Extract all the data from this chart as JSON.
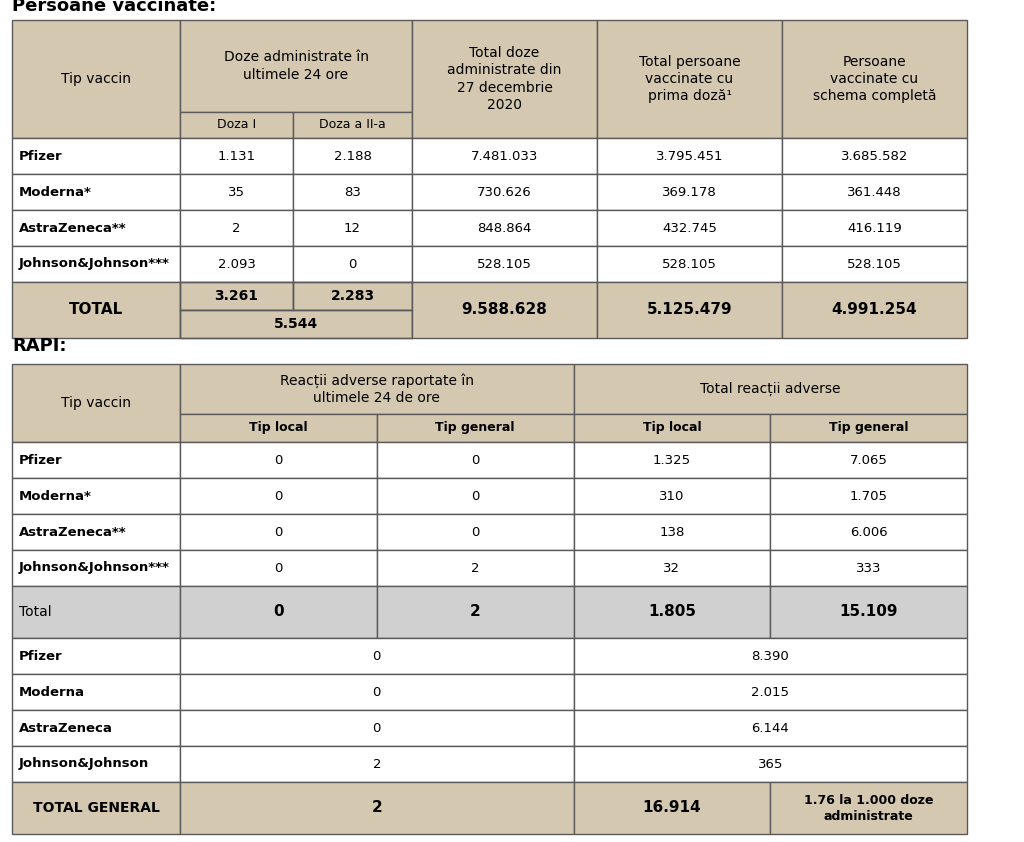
{
  "title1": "Persoane vaccinate:",
  "title2": "RAPI:",
  "bg_color": "#ffffff",
  "header_bg": "#d4c9b0",
  "total_bg": "#d4c9b0",
  "rapi_total_bg": "#d0d0d0",
  "border_color": "#5a5a5a",
  "lw": 1.0,
  "t1": {
    "rows": [
      [
        "Pfizer",
        "1.131",
        "2.188",
        "7.481.033",
        "3.795.451",
        "3.685.582"
      ],
      [
        "Moderna*",
        "35",
        "83",
        "730.626",
        "369.178",
        "361.448"
      ],
      [
        "AstraZeneca**",
        "2",
        "12",
        "848.864",
        "432.745",
        "416.119"
      ],
      [
        "Johnson&Johnson***",
        "2.093",
        "0",
        "528.105",
        "528.105",
        "528.105"
      ]
    ],
    "total": [
      "TOTAL",
      "3.261",
      "2.283",
      "5.544",
      "9.588.628",
      "5.125.479",
      "4.991.254"
    ]
  },
  "t2": {
    "rows": [
      [
        "Pfizer",
        "0",
        "0",
        "1.325",
        "7.065"
      ],
      [
        "Moderna*",
        "0",
        "0",
        "310",
        "1.705"
      ],
      [
        "AstraZeneca**",
        "0",
        "0",
        "138",
        "6.006"
      ],
      [
        "Johnson&Johnson***",
        "0",
        "2",
        "32",
        "333"
      ]
    ],
    "total": [
      "Total",
      "0",
      "2",
      "1.805",
      "15.109"
    ],
    "rows2": [
      [
        "Pfizer",
        "0",
        "8.390"
      ],
      [
        "Moderna",
        "0",
        "2.015"
      ],
      [
        "AstraZeneca",
        "0",
        "6.144"
      ],
      [
        "Johnson&Johnson",
        "2",
        "365"
      ]
    ],
    "total_gen": [
      "TOTAL GENERAL",
      "2",
      "16.914",
      "1.76 la 1.000 doze\nadministrate"
    ]
  }
}
